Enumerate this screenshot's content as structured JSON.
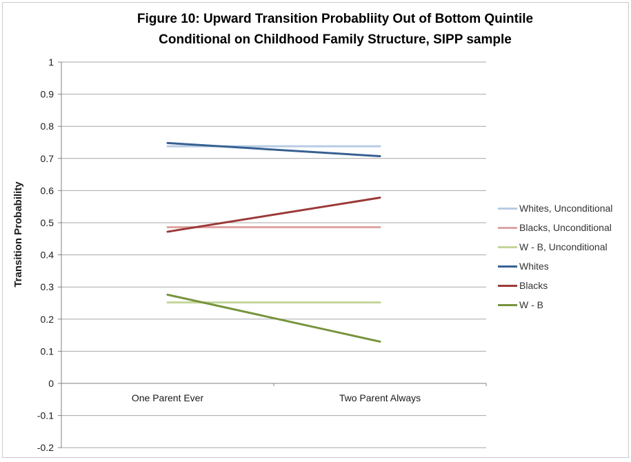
{
  "figure": {
    "title_line1": "Figure 10: Upward Transition Probabliity Out of Bottom Quintile",
    "title_line2": "Conditional on Childhood Family Structure, SIPP sample"
  },
  "chart_data": {
    "type": "line",
    "title": "Figure 10: Upward Transition Probabliity Out of Bottom Quintile Conditional on Childhood Family Structure, SIPP sample",
    "categories": [
      "One Parent Ever",
      "Two Parent Always"
    ],
    "xlabel": "",
    "ylabel": "Transition Probability",
    "ylim": [
      -0.2,
      1.0
    ],
    "ytick_step": 0.1,
    "yticks": [
      "1",
      "0.9",
      "0.8",
      "0.7",
      "0.6",
      "0.5",
      "0.4",
      "0.3",
      "0.2",
      "0.1",
      "0",
      "-0.1",
      "-0.2"
    ],
    "grid": true,
    "legend_position": "right",
    "series": [
      {
        "name": "Whites, Unconditional",
        "color": "#b8cce4",
        "values": [
          0.738,
          0.738
        ]
      },
      {
        "name": "Blacks, Unconditional",
        "color": "#dda5a3",
        "values": [
          0.486,
          0.486
        ]
      },
      {
        "name": "W - B, Unconditional",
        "color": "#c3d69b",
        "values": [
          0.252,
          0.252
        ]
      },
      {
        "name": "Whites",
        "color": "#376092",
        "values": [
          0.748,
          0.707
        ]
      },
      {
        "name": "Blacks",
        "color": "#9b3938",
        "values": [
          0.472,
          0.578
        ]
      },
      {
        "name": "W - B",
        "color": "#77933c",
        "values": [
          0.276,
          0.13
        ]
      }
    ]
  },
  "style": {
    "grid_color": "#a6a6a6",
    "axis_color": "#808080",
    "frame_color": "#c9c9c9",
    "title_color": "#000000",
    "tick_text_color": "#1a1a1a",
    "legend_text_color": "#333333"
  }
}
